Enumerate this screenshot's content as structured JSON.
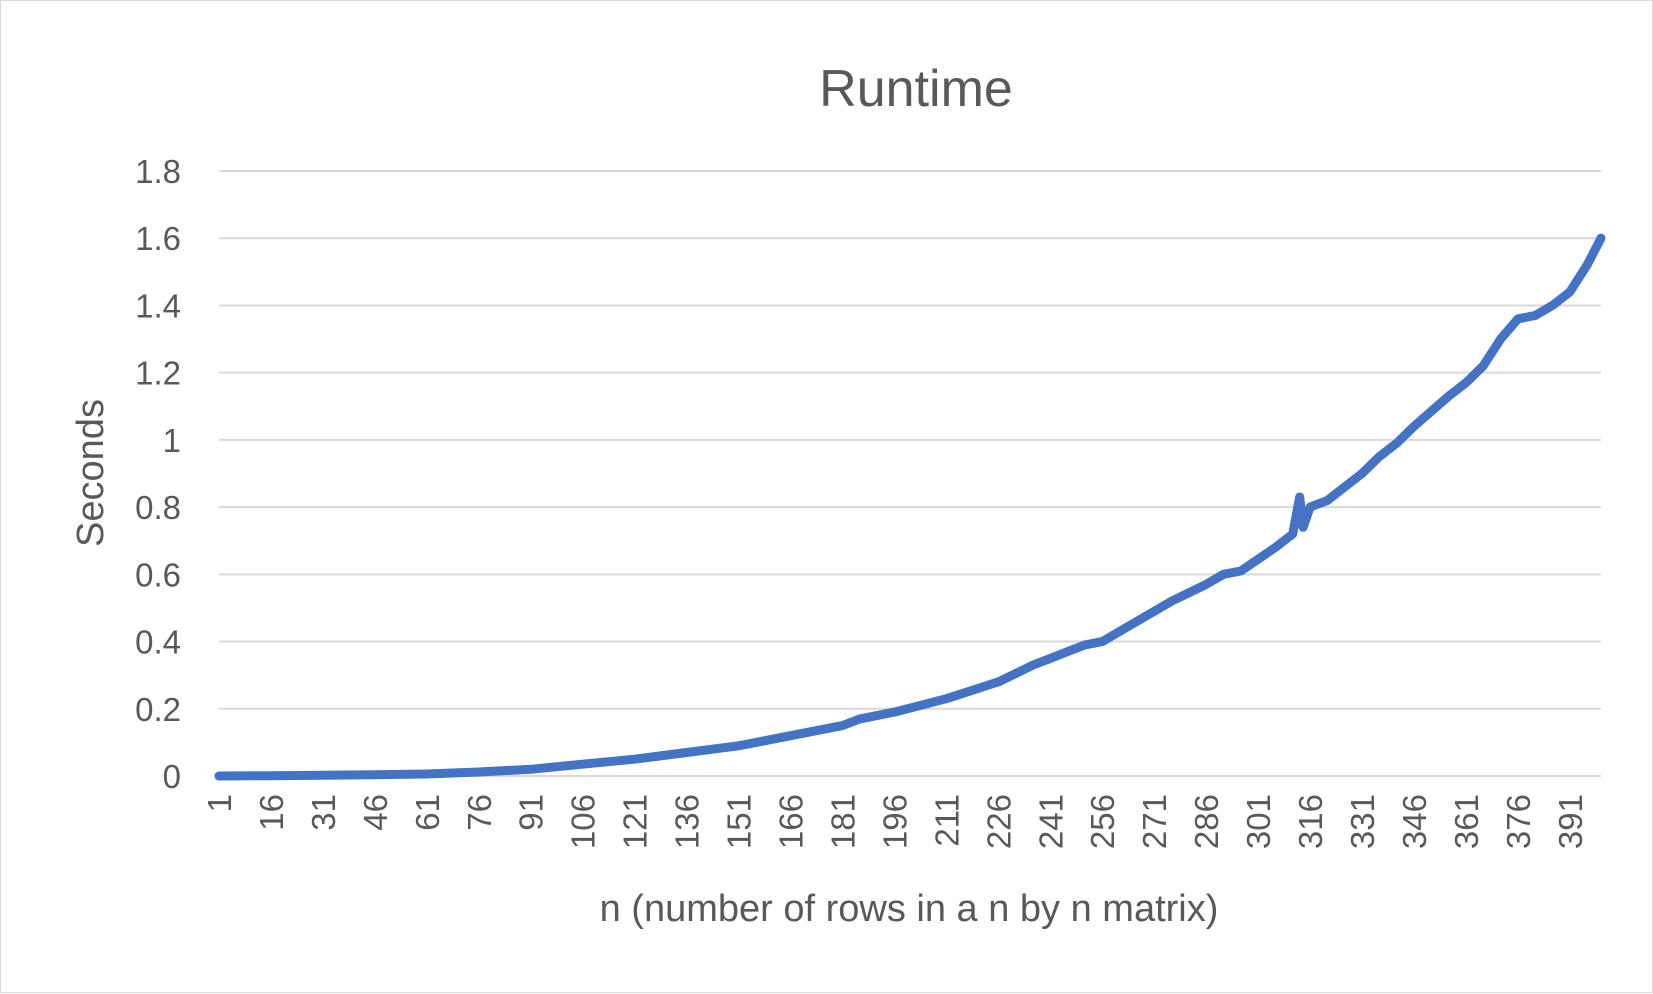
{
  "colors": {
    "series": "#4472c4",
    "gridline": "#d9d9d9",
    "text": "#595959",
    "background": "#ffffff"
  },
  "chart_data": {
    "type": "line",
    "title": "Runtime",
    "xlabel": "n (number of rows in a n by n matrix)",
    "ylabel": "Seconds",
    "ylim": [
      0,
      1.8
    ],
    "yticks": [
      0,
      0.2,
      0.4,
      0.6,
      0.8,
      1,
      1.2,
      1.4,
      1.6,
      1.8
    ],
    "xlim": [
      1,
      400
    ],
    "xticks": [
      1,
      16,
      31,
      46,
      61,
      76,
      91,
      106,
      121,
      136,
      151,
      166,
      181,
      196,
      211,
      226,
      241,
      256,
      271,
      286,
      301,
      316,
      331,
      346,
      361,
      376,
      391
    ],
    "grid": true,
    "legend": "none",
    "series": [
      {
        "x": [
          1,
          16,
          31,
          46,
          61,
          76,
          91,
          106,
          121,
          136,
          151,
          166,
          181,
          186,
          196,
          211,
          226,
          236,
          241,
          246,
          251,
          256,
          266,
          276,
          286,
          291,
          296,
          306,
          311,
          313,
          314,
          316,
          321,
          326,
          331,
          336,
          341,
          346,
          356,
          361,
          366,
          371,
          376,
          381,
          386,
          391,
          396,
          400
        ],
        "y": [
          0,
          0.001,
          0.002,
          0.004,
          0.006,
          0.012,
          0.02,
          0.035,
          0.05,
          0.07,
          0.09,
          0.12,
          0.15,
          0.17,
          0.19,
          0.23,
          0.28,
          0.33,
          0.35,
          0.37,
          0.39,
          0.4,
          0.46,
          0.52,
          0.57,
          0.6,
          0.61,
          0.68,
          0.72,
          0.83,
          0.74,
          0.8,
          0.82,
          0.86,
          0.9,
          0.95,
          0.99,
          1.04,
          1.13,
          1.17,
          1.22,
          1.3,
          1.36,
          1.37,
          1.4,
          1.44,
          1.52,
          1.6
        ]
      }
    ]
  }
}
